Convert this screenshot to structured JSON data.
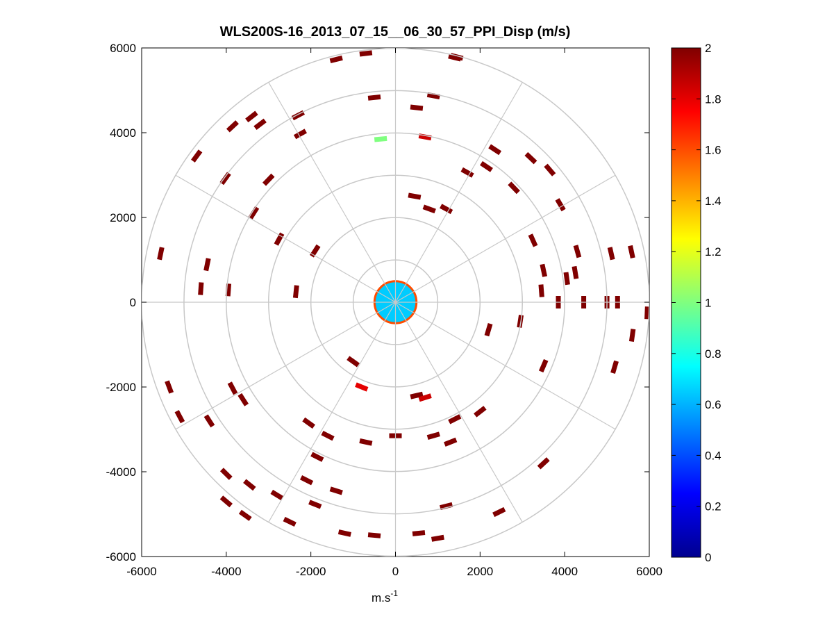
{
  "chart_data": {
    "type": "heatmap",
    "subtype": "polar PPI scan",
    "title": "WLS200S-16_2013_07_15__06_30_57_PPI_Disp (m/s)",
    "xlabel": "m.s",
    "xlabel_superscript": "-1",
    "ylabel": "",
    "xlim": [
      -6000,
      6000
    ],
    "ylim": [
      -6000,
      6000
    ],
    "x_ticks": [
      -6000,
      -4000,
      -2000,
      0,
      2000,
      4000,
      6000
    ],
    "y_ticks": [
      -6000,
      -4000,
      -2000,
      0,
      2000,
      4000,
      6000
    ],
    "x_tick_labels": [
      "-6000",
      "-4000",
      "-2000",
      "0",
      "2000",
      "4000",
      "6000"
    ],
    "y_tick_labels": [
      "-6000",
      "-4000",
      "-2000",
      "0",
      "2000",
      "4000",
      "6000"
    ],
    "range_rings": [
      1000,
      2000,
      3000,
      4000,
      5000,
      6000
    ],
    "azimuth_spokes_deg": [
      0,
      30,
      60,
      90,
      120,
      150,
      180,
      210,
      240,
      270,
      300,
      330
    ],
    "grid_color": "#c8c8c8",
    "colorbar": {
      "colormap": "jet",
      "min": 0,
      "max": 2,
      "ticks": [
        0,
        0.2,
        0.4,
        0.6,
        0.8,
        1,
        1.2,
        1.4,
        1.6,
        1.8,
        2
      ],
      "tick_labels": [
        "0",
        "0.2",
        "0.4",
        "0.6",
        "0.8",
        "1",
        "1.2",
        "1.4",
        "1.6",
        "1.8",
        "2"
      ]
    },
    "near_field": {
      "max_range": 800,
      "typical_value": 0.65
    },
    "cells": [
      {
        "x": -700,
        "y": 5870,
        "v": 2
      },
      {
        "x": -1400,
        "y": 5730,
        "v": 2
      },
      {
        "x": 1400,
        "y": 5770,
        "v": 2
      },
      {
        "x": 1450,
        "y": 5790,
        "v": 2
      },
      {
        "x": -500,
        "y": 4830,
        "v": 2
      },
      {
        "x": 900,
        "y": 4870,
        "v": 2
      },
      {
        "x": 500,
        "y": 4590,
        "v": 2
      },
      {
        "x": -350,
        "y": 3850,
        "v": 1.0
      },
      {
        "x": 700,
        "y": 3900,
        "v": 1.85
      },
      {
        "x": -2300,
        "y": 4410,
        "v": 2
      },
      {
        "x": -3400,
        "y": 4380,
        "v": 2
      },
      {
        "x": -3850,
        "y": 4150,
        "v": 2
      },
      {
        "x": -3200,
        "y": 4200,
        "v": 2
      },
      {
        "x": -2250,
        "y": 3970,
        "v": 2
      },
      {
        "x": -4700,
        "y": 3450,
        "v": 2
      },
      {
        "x": -4020,
        "y": 2920,
        "v": 2
      },
      {
        "x": -3000,
        "y": 2890,
        "v": 2
      },
      {
        "x": -3350,
        "y": 2110,
        "v": 2
      },
      {
        "x": -2750,
        "y": 1490,
        "v": 2
      },
      {
        "x": -1900,
        "y": 1210,
        "v": 2
      },
      {
        "x": -5550,
        "y": 1150,
        "v": 2
      },
      {
        "x": -4450,
        "y": 890,
        "v": 2
      },
      {
        "x": -4600,
        "y": 320,
        "v": 2
      },
      {
        "x": -3950,
        "y": 290,
        "v": 2
      },
      {
        "x": -2350,
        "y": 250,
        "v": 2
      },
      {
        "x": 2350,
        "y": 3600,
        "v": 2
      },
      {
        "x": 2150,
        "y": 3200,
        "v": 2
      },
      {
        "x": 3200,
        "y": 3400,
        "v": 2
      },
      {
        "x": 3650,
        "y": 3120,
        "v": 2
      },
      {
        "x": 2800,
        "y": 2700,
        "v": 2
      },
      {
        "x": 1700,
        "y": 3060,
        "v": 2
      },
      {
        "x": 3900,
        "y": 2300,
        "v": 2
      },
      {
        "x": 4300,
        "y": 1200,
        "v": 2
      },
      {
        "x": 3250,
        "y": 1460,
        "v": 2
      },
      {
        "x": 5100,
        "y": 1150,
        "v": 2
      },
      {
        "x": 5580,
        "y": 1190,
        "v": 2
      },
      {
        "x": 4250,
        "y": 700,
        "v": 2
      },
      {
        "x": 4050,
        "y": 560,
        "v": 2
      },
      {
        "x": 3500,
        "y": 750,
        "v": 2
      },
      {
        "x": 3450,
        "y": 270,
        "v": 2
      },
      {
        "x": 3850,
        "y": 0,
        "v": 2
      },
      {
        "x": 4450,
        "y": 0,
        "v": 2
      },
      {
        "x": 5000,
        "y": 0,
        "v": 2
      },
      {
        "x": 5250,
        "y": 0,
        "v": 2
      },
      {
        "x": 5950,
        "y": -250,
        "v": 2
      },
      {
        "x": 5600,
        "y": -780,
        "v": 2
      },
      {
        "x": 5180,
        "y": -1530,
        "v": 2
      },
      {
        "x": 2950,
        "y": -450,
        "v": 2
      },
      {
        "x": 2200,
        "y": -650,
        "v": 2
      },
      {
        "x": 3500,
        "y": -1500,
        "v": 2
      },
      {
        "x": 3500,
        "y": -3800,
        "v": 2
      },
      {
        "x": 2450,
        "y": -4950,
        "v": 2
      },
      {
        "x": 1200,
        "y": -4810,
        "v": 2
      },
      {
        "x": 550,
        "y": -5450,
        "v": 2
      },
      {
        "x": 1000,
        "y": -5570,
        "v": 2
      },
      {
        "x": -500,
        "y": -5500,
        "v": 2
      },
      {
        "x": -1200,
        "y": -5450,
        "v": 2
      },
      {
        "x": -2500,
        "y": -5180,
        "v": 2
      },
      {
        "x": -3550,
        "y": -5030,
        "v": 2
      },
      {
        "x": -1900,
        "y": -4770,
        "v": 2
      },
      {
        "x": -1400,
        "y": -4450,
        "v": 2
      },
      {
        "x": -4000,
        "y": -4700,
        "v": 2
      },
      {
        "x": -2800,
        "y": -4550,
        "v": 2
      },
      {
        "x": -3450,
        "y": -4310,
        "v": 2
      },
      {
        "x": -4000,
        "y": -4050,
        "v": 2
      },
      {
        "x": -2100,
        "y": -4200,
        "v": 2
      },
      {
        "x": -4400,
        "y": -2800,
        "v": 2
      },
      {
        "x": -5100,
        "y": -2700,
        "v": 2
      },
      {
        "x": -5350,
        "y": -2000,
        "v": 2
      },
      {
        "x": -3850,
        "y": -2030,
        "v": 2
      },
      {
        "x": -3600,
        "y": -2300,
        "v": 2
      },
      {
        "x": -2050,
        "y": -2850,
        "v": 2
      },
      {
        "x": -1600,
        "y": -3150,
        "v": 2
      },
      {
        "x": 900,
        "y": -3150,
        "v": 2
      },
      {
        "x": 1300,
        "y": -3300,
        "v": 2
      },
      {
        "x": 2000,
        "y": -2580,
        "v": 2
      },
      {
        "x": 1400,
        "y": -2760,
        "v": 2
      },
      {
        "x": -1850,
        "y": -3650,
        "v": 2
      },
      {
        "x": -700,
        "y": -3300,
        "v": 2
      },
      {
        "x": 0,
        "y": -3150,
        "v": 2
      },
      {
        "x": -1000,
        "y": -1400,
        "v": 2
      },
      {
        "x": -800,
        "y": -2000,
        "v": 1.8
      },
      {
        "x": 500,
        "y": -2200,
        "v": 2
      },
      {
        "x": 700,
        "y": -2250,
        "v": 1.85
      },
      {
        "x": 450,
        "y": 2500,
        "v": 2
      },
      {
        "x": 800,
        "y": 2200,
        "v": 2
      },
      {
        "x": 1200,
        "y": 2200,
        "v": 2
      }
    ]
  }
}
